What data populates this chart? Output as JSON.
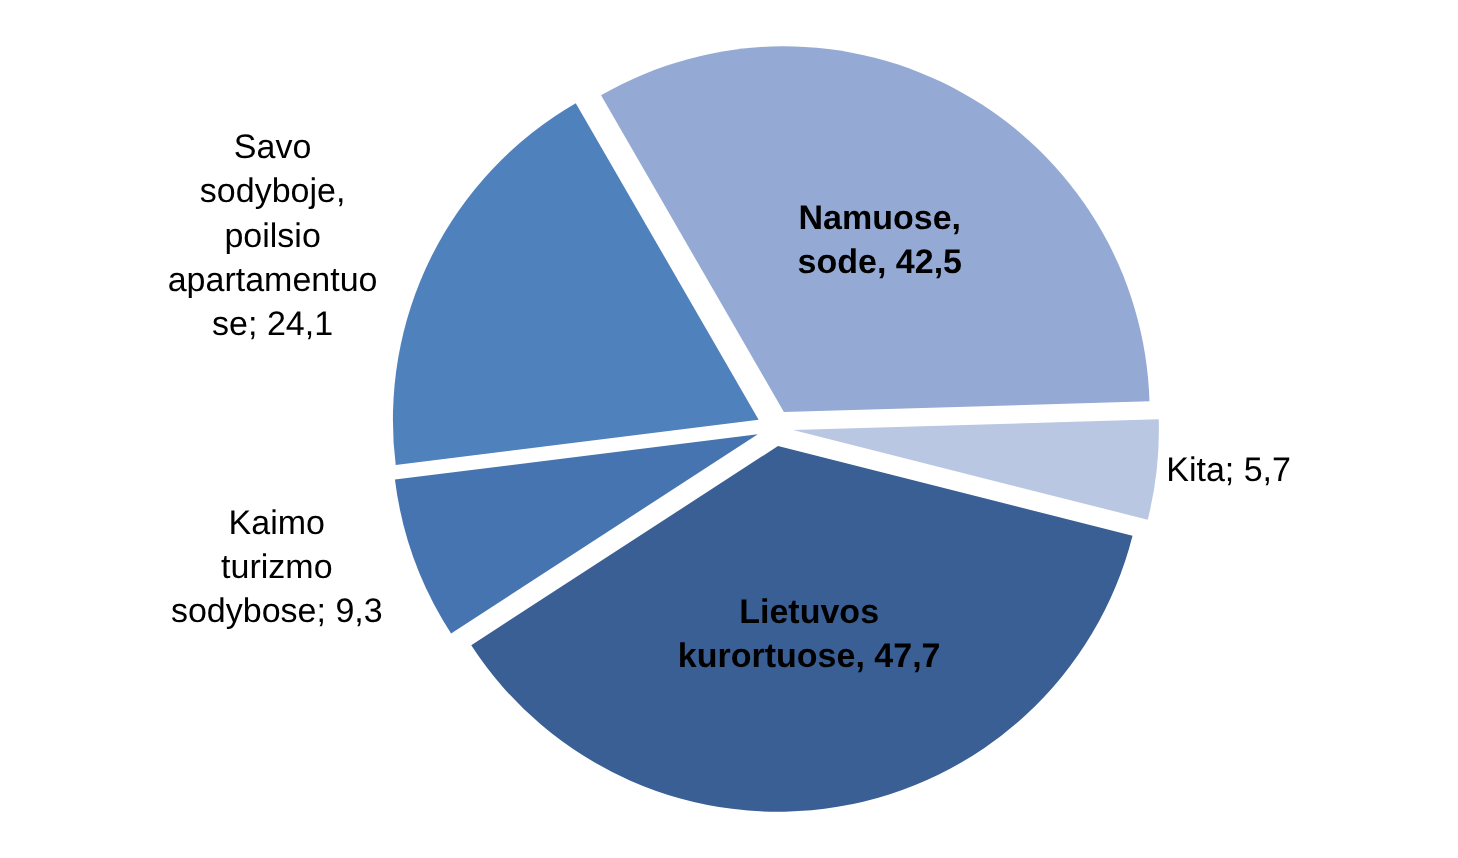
{
  "chart_data": {
    "type": "pie",
    "categories": [
      "Namuose,\nsode",
      "Kita",
      "Lietuvos\nkurortuose",
      "Kaimo\nturizmo\nsodybose",
      "Savo\nsodyboje,\npoilsio\napartamentuo\nse"
    ],
    "values": [
      42.5,
      5.7,
      47.7,
      9.3,
      24.1
    ],
    "colors": [
      "#94aad4",
      "#b9c7e3",
      "#3a5f94",
      "#4674b0",
      "#4f81bd"
    ],
    "value_labels": [
      "42,5",
      "5,7",
      "47,7",
      "9,3",
      "24,1"
    ],
    "legend": false
  }
}
